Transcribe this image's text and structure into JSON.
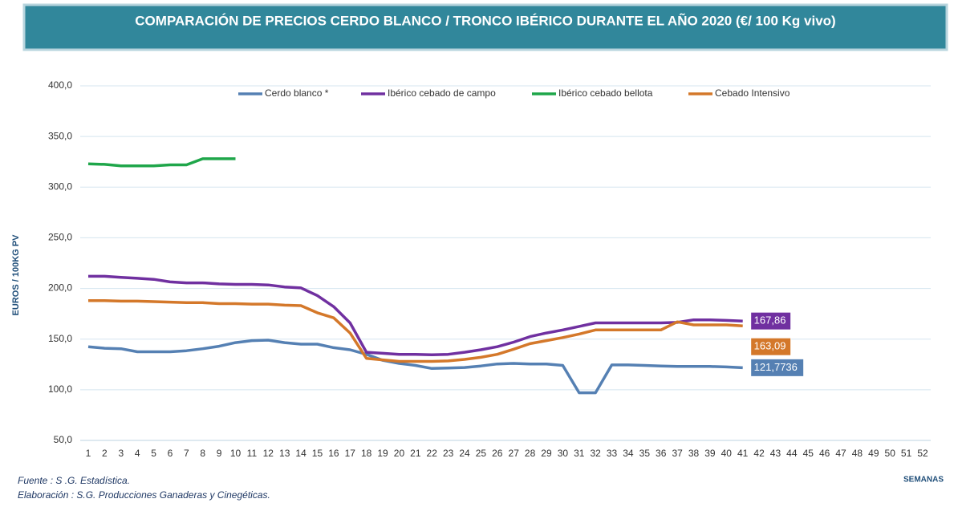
{
  "chart_data": {
    "type": "line",
    "title": "COMPARACIÓN DE PRECIOS CERDO BLANCO / TRONCO IBÉRICO DURANTE EL AÑO 2020 (€/ 100 Kg vivo)",
    "y_label": "EUROS / 100KG PV",
    "x_label": "SEMANAS",
    "source": "Fuente : S .G. Estadística.",
    "credit": "Elaboración : S.G. Producciones Ganaderas y Cinegéticas.",
    "categories": [
      "1",
      "2",
      "3",
      "4",
      "5",
      "6",
      "7",
      "8",
      "9",
      "10",
      "11",
      "12",
      "13",
      "14",
      "15",
      "16",
      "17",
      "18",
      "19",
      "20",
      "21",
      "22",
      "23",
      "24",
      "25",
      "26",
      "27",
      "28",
      "29",
      "30",
      "31",
      "32",
      "33",
      "34",
      "35",
      "36",
      "37",
      "38",
      "39",
      "40",
      "41",
      "42",
      "43",
      "44",
      "45",
      "46",
      "47",
      "48",
      "49",
      "50",
      "51",
      "52"
    ],
    "ylim": [
      50,
      400
    ],
    "yticks": [
      {
        "value": 50,
        "label": "50,0"
      },
      {
        "value": 100,
        "label": "100,0"
      },
      {
        "value": 150,
        "label": "150,0"
      },
      {
        "value": 200,
        "label": "200,0"
      },
      {
        "value": 250,
        "label": "250,0"
      },
      {
        "value": 300,
        "label": "300,0"
      },
      {
        "value": 350,
        "label": "350,0"
      },
      {
        "value": 400,
        "label": "400,0"
      }
    ],
    "grid": true,
    "legend": "top",
    "series": [
      {
        "name": "Cerdo blanco *",
        "color": "#5580b3",
        "values": [
          142.5,
          141,
          140.5,
          137.5,
          137.5,
          137.5,
          138.5,
          140.5,
          143,
          146.5,
          148.5,
          149,
          146.5,
          145,
          145,
          141.5,
          139.5,
          135,
          129,
          126,
          124,
          121,
          121.5,
          122,
          123.5,
          125.5,
          126,
          125.5,
          125.5,
          124,
          97,
          97,
          124.5,
          124.5,
          124,
          123.5,
          123,
          123,
          123,
          122.5,
          121.7736,
          null,
          null,
          null,
          null,
          null,
          null,
          null,
          null,
          null,
          null,
          null
        ],
        "value_labels": [
          null,
          null,
          null,
          null,
          null,
          null,
          null,
          null,
          null,
          null,
          null,
          null,
          null,
          null,
          null,
          null,
          null,
          null,
          null,
          null,
          null,
          null,
          null,
          null,
          null,
          null,
          null,
          null,
          null,
          null,
          null,
          null,
          null,
          null,
          null,
          null,
          null,
          null,
          null,
          null,
          "121,7736",
          null,
          null,
          null,
          null,
          null,
          null,
          null,
          null,
          null,
          null,
          null
        ]
      },
      {
        "name": "Ibérico cebado de campo",
        "color": "#7030a0",
        "values": [
          212,
          212,
          211,
          210,
          209,
          206.5,
          205.5,
          205.5,
          204.5,
          204,
          204,
          203.5,
          201.5,
          200.5,
          193,
          182,
          166,
          137,
          136,
          135,
          135,
          134.5,
          135,
          137,
          139.5,
          142.5,
          147,
          152.5,
          156,
          159,
          162.5,
          166,
          166,
          166,
          166,
          166,
          166.5,
          169,
          169,
          168.5,
          167.86,
          null,
          null,
          null,
          null,
          null,
          null,
          null,
          null,
          null,
          null,
          null
        ],
        "value_labels": [
          null,
          null,
          null,
          null,
          null,
          null,
          null,
          null,
          null,
          null,
          null,
          null,
          null,
          null,
          null,
          null,
          null,
          null,
          null,
          null,
          null,
          null,
          null,
          null,
          null,
          null,
          null,
          null,
          null,
          null,
          null,
          null,
          null,
          null,
          null,
          null,
          null,
          null,
          null,
          null,
          "167,86",
          null,
          null,
          null,
          null,
          null,
          null,
          null,
          null,
          null,
          null,
          null
        ]
      },
      {
        "name": "Ibérico cebado bellota",
        "color": "#1fa64a",
        "values": [
          323,
          322.5,
          321,
          321,
          321,
          322,
          322,
          328,
          328,
          328,
          null,
          null,
          null,
          null,
          null,
          null,
          null,
          null,
          null,
          null,
          null,
          null,
          null,
          null,
          null,
          null,
          null,
          null,
          null,
          null,
          null,
          null,
          null,
          null,
          null,
          null,
          null,
          null,
          null,
          null,
          null,
          null,
          null,
          null,
          null,
          null,
          null,
          null,
          null,
          null,
          null,
          null
        ]
      },
      {
        "name": "Cebado Intensivo",
        "color": "#d4782a",
        "values": [
          188,
          188,
          187.5,
          187.5,
          187,
          186.5,
          186,
          186,
          185,
          185,
          184.5,
          184.5,
          183.5,
          183,
          176,
          171,
          156,
          131,
          129.5,
          128,
          128,
          128,
          128.5,
          130,
          132,
          135,
          140,
          145.5,
          148.5,
          151.5,
          155,
          159,
          159,
          159,
          159,
          159,
          167,
          164,
          164,
          164,
          163.09,
          null,
          null,
          null,
          null,
          null,
          null,
          null,
          null,
          null,
          null,
          null
        ],
        "value_labels": [
          null,
          null,
          null,
          null,
          null,
          null,
          null,
          null,
          null,
          null,
          null,
          null,
          null,
          null,
          null,
          null,
          null,
          null,
          null,
          null,
          null,
          null,
          null,
          null,
          null,
          null,
          null,
          null,
          null,
          null,
          null,
          null,
          null,
          null,
          null,
          null,
          null,
          null,
          null,
          null,
          "163,09",
          null,
          null,
          null,
          null,
          null,
          null,
          null,
          null,
          null,
          null,
          null
        ]
      }
    ]
  }
}
